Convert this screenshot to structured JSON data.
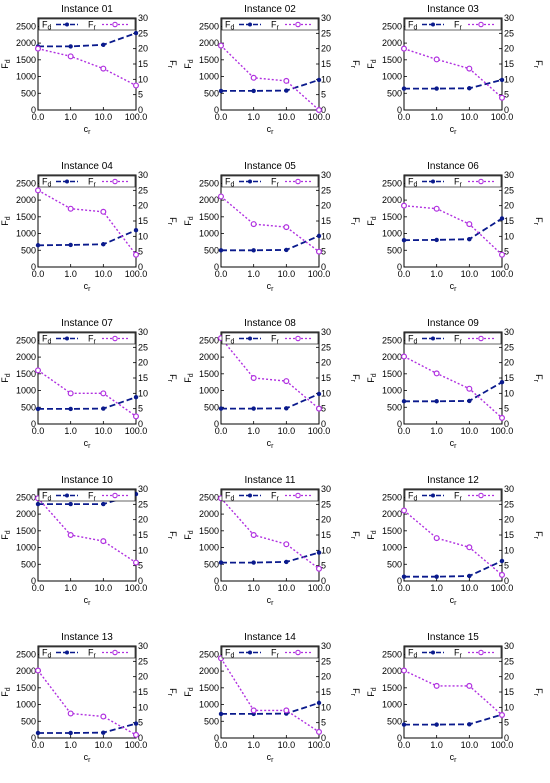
{
  "layout_note": "",
  "colors": {
    "fd": "#0a1a8c",
    "fr": "#b030e0",
    "axis": "#000000"
  },
  "legend": {
    "fd": "F_d",
    "fr": "F_r"
  },
  "chart_data": [
    {
      "type": "line",
      "title": "Instance 01",
      "categories": [
        "0.0",
        "1.0",
        "10.0",
        "100.0"
      ],
      "xlabel": "c_r",
      "ylabel": "F_d",
      "y2label": "F_r",
      "ylim": [
        0,
        2750
      ],
      "y2lim": [
        0,
        30
      ],
      "yticks": [
        0,
        500,
        1000,
        1500,
        2000,
        2500
      ],
      "y2ticks": [
        0,
        5,
        10,
        15,
        20,
        25,
        30
      ],
      "legend_position": "top",
      "series": [
        {
          "name": "F_d",
          "axis": "left",
          "values": [
            1900,
            1900,
            1950,
            2300
          ]
        },
        {
          "name": "F_r",
          "axis": "right",
          "values": [
            20,
            17.5,
            13.5,
            8
          ]
        }
      ]
    },
    {
      "type": "line",
      "title": "Instance 02",
      "categories": [
        "0.0",
        "1.0",
        "10.0",
        "100.0"
      ],
      "xlabel": "c_r",
      "ylabel": "F_d",
      "y2label": "F_r",
      "ylim": [
        0,
        2750
      ],
      "y2lim": [
        0,
        30
      ],
      "yticks": [
        0,
        500,
        1000,
        1500,
        2000,
        2500
      ],
      "y2ticks": [
        0,
        5,
        10,
        15,
        20,
        25,
        30
      ],
      "legend_position": "top",
      "series": [
        {
          "name": "F_d",
          "axis": "left",
          "values": [
            570,
            570,
            580,
            900
          ]
        },
        {
          "name": "F_r",
          "axis": "right",
          "values": [
            21,
            10.5,
            9.5,
            0
          ]
        }
      ]
    },
    {
      "type": "line",
      "title": "Instance 03",
      "categories": [
        "0.0",
        "1.0",
        "10.0",
        "100.0"
      ],
      "xlabel": "c_r",
      "ylabel": "F_d",
      "y2label": "F_r",
      "ylim": [
        0,
        2750
      ],
      "y2lim": [
        0,
        30
      ],
      "yticks": [
        0,
        500,
        1000,
        1500,
        2000,
        2500
      ],
      "y2ticks": [
        0,
        5,
        10,
        15,
        20,
        25,
        30
      ],
      "legend_position": "top",
      "series": [
        {
          "name": "F_d",
          "axis": "left",
          "values": [
            640,
            640,
            650,
            900
          ]
        },
        {
          "name": "F_r",
          "axis": "right",
          "values": [
            20,
            16.5,
            13.5,
            4
          ]
        }
      ]
    },
    {
      "type": "line",
      "title": "Instance 04",
      "categories": [
        "0.0",
        "1.0",
        "10.0",
        "100.0"
      ],
      "xlabel": "c_r",
      "ylabel": "F_d",
      "y2label": "F_r",
      "ylim": [
        0,
        2750
      ],
      "y2lim": [
        0,
        30
      ],
      "yticks": [
        0,
        500,
        1000,
        1500,
        2000,
        2500
      ],
      "y2ticks": [
        0,
        5,
        10,
        15,
        20,
        25,
        30
      ],
      "legend_position": "top",
      "series": [
        {
          "name": "F_d",
          "axis": "left",
          "values": [
            650,
            660,
            680,
            1100
          ]
        },
        {
          "name": "F_r",
          "axis": "right",
          "values": [
            25,
            19,
            18,
            4
          ]
        }
      ]
    },
    {
      "type": "line",
      "title": "Instance 05",
      "categories": [
        "0.0",
        "1.0",
        "10.0",
        "100.0"
      ],
      "xlabel": "c_r",
      "ylabel": "F_d",
      "y2label": "F_r",
      "ylim": [
        0,
        2750
      ],
      "y2lim": [
        0,
        30
      ],
      "yticks": [
        0,
        500,
        1000,
        1500,
        2000,
        2500
      ],
      "y2ticks": [
        0,
        5,
        10,
        15,
        20,
        25,
        30
      ],
      "legend_position": "top",
      "series": [
        {
          "name": "F_d",
          "axis": "left",
          "values": [
            500,
            500,
            510,
            930
          ]
        },
        {
          "name": "F_r",
          "axis": "right",
          "values": [
            23,
            14,
            13,
            5
          ]
        }
      ]
    },
    {
      "type": "line",
      "title": "Instance 06",
      "categories": [
        "0.0",
        "1.0",
        "10.0",
        "100.0"
      ],
      "xlabel": "c_r",
      "ylabel": "F_d",
      "y2label": "F_r",
      "ylim": [
        0,
        2750
      ],
      "y2lim": [
        0,
        30
      ],
      "yticks": [
        0,
        500,
        1000,
        1500,
        2000,
        2500
      ],
      "y2ticks": [
        0,
        5,
        10,
        15,
        20,
        25,
        30
      ],
      "legend_position": "top",
      "series": [
        {
          "name": "F_d",
          "axis": "left",
          "values": [
            800,
            810,
            830,
            1450
          ]
        },
        {
          "name": "F_r",
          "axis": "right",
          "values": [
            20,
            19,
            14,
            4
          ]
        }
      ]
    },
    {
      "type": "line",
      "title": "Instance 07",
      "categories": [
        "0.0",
        "1.0",
        "10.0",
        "100.0"
      ],
      "xlabel": "c_r",
      "ylabel": "F_d",
      "y2label": "F_r",
      "ylim": [
        0,
        2750
      ],
      "y2lim": [
        0,
        30
      ],
      "yticks": [
        0,
        500,
        1000,
        1500,
        2000,
        2500
      ],
      "y2ticks": [
        0,
        5,
        10,
        15,
        20,
        25,
        30
      ],
      "legend_position": "top",
      "series": [
        {
          "name": "F_d",
          "axis": "left",
          "values": [
            450,
            450,
            460,
            800
          ]
        },
        {
          "name": "F_r",
          "axis": "right",
          "values": [
            17.5,
            10,
            10,
            2.5
          ]
        }
      ]
    },
    {
      "type": "line",
      "title": "Instance 08",
      "categories": [
        "0.0",
        "1.0",
        "10.0",
        "100.0"
      ],
      "xlabel": "c_r",
      "ylabel": "F_d",
      "y2label": "F_r",
      "ylim": [
        0,
        2750
      ],
      "y2lim": [
        0,
        30
      ],
      "yticks": [
        0,
        500,
        1000,
        1500,
        2000,
        2500
      ],
      "y2ticks": [
        0,
        5,
        10,
        15,
        20,
        25,
        30
      ],
      "legend_position": "top",
      "series": [
        {
          "name": "F_d",
          "axis": "left",
          "values": [
            460,
            460,
            470,
            900
          ]
        },
        {
          "name": "F_r",
          "axis": "right",
          "values": [
            28,
            15,
            14,
            5
          ]
        }
      ]
    },
    {
      "type": "line",
      "title": "Instance 09",
      "categories": [
        "0.0",
        "1.0",
        "10.0",
        "100.0"
      ],
      "xlabel": "c_r",
      "ylabel": "F_d",
      "y2label": "F_r",
      "ylim": [
        0,
        2750
      ],
      "y2lim": [
        0,
        30
      ],
      "yticks": [
        0,
        500,
        1000,
        1500,
        2000,
        2500
      ],
      "y2ticks": [
        0,
        5,
        10,
        15,
        20,
        25,
        30
      ],
      "legend_position": "top",
      "series": [
        {
          "name": "F_d",
          "axis": "left",
          "values": [
            680,
            680,
            690,
            1250
          ]
        },
        {
          "name": "F_r",
          "axis": "right",
          "values": [
            22,
            16.5,
            11.5,
            2
          ]
        }
      ]
    },
    {
      "type": "line",
      "title": "Instance 10",
      "categories": [
        "0.0",
        "1.0",
        "10.0",
        "100.0"
      ],
      "xlabel": "c_r",
      "ylabel": "F_d",
      "y2label": "F_r",
      "ylim": [
        0,
        2750
      ],
      "y2lim": [
        0,
        30
      ],
      "yticks": [
        0,
        500,
        1000,
        1500,
        2000,
        2500
      ],
      "y2ticks": [
        0,
        5,
        10,
        15,
        20,
        25,
        30
      ],
      "legend_position": "top",
      "series": [
        {
          "name": "F_d",
          "axis": "left",
          "values": [
            2300,
            2300,
            2300,
            2600
          ]
        },
        {
          "name": "F_r",
          "axis": "right",
          "values": [
            27,
            15,
            13,
            6
          ]
        }
      ]
    },
    {
      "type": "line",
      "title": "Instance 11",
      "categories": [
        "0.0",
        "1.0",
        "10.0",
        "100.0"
      ],
      "xlabel": "c_r",
      "ylabel": "F_d",
      "y2label": "F_r",
      "ylim": [
        0,
        2750
      ],
      "y2lim": [
        0,
        30
      ],
      "yticks": [
        0,
        500,
        1000,
        1500,
        2000,
        2500
      ],
      "y2ticks": [
        0,
        5,
        10,
        15,
        20,
        25,
        30
      ],
      "legend_position": "top",
      "series": [
        {
          "name": "F_d",
          "axis": "left",
          "values": [
            550,
            550,
            570,
            850
          ]
        },
        {
          "name": "F_r",
          "axis": "right",
          "values": [
            27,
            15,
            12,
            4
          ]
        }
      ]
    },
    {
      "type": "line",
      "title": "Instance 12",
      "categories": [
        "0.0",
        "1.0",
        "10.0",
        "100.0"
      ],
      "xlabel": "c_r",
      "ylabel": "F_d",
      "y2label": "F_r",
      "ylim": [
        0,
        2750
      ],
      "y2lim": [
        0,
        30
      ],
      "yticks": [
        0,
        500,
        1000,
        1500,
        2000,
        2500
      ],
      "y2ticks": [
        0,
        5,
        10,
        15,
        20,
        25,
        30
      ],
      "legend_position": "top",
      "series": [
        {
          "name": "F_d",
          "axis": "left",
          "values": [
            130,
            130,
            150,
            600
          ]
        },
        {
          "name": "F_r",
          "axis": "right",
          "values": [
            23,
            14,
            11,
            2
          ]
        }
      ]
    },
    {
      "type": "line",
      "title": "Instance 13",
      "categories": [
        "0.0",
        "1.0",
        "10.0",
        "100.0"
      ],
      "xlabel": "c_r",
      "ylabel": "F_d",
      "y2label": "F_r",
      "ylim": [
        0,
        2750
      ],
      "y2lim": [
        0,
        30
      ],
      "yticks": [
        0,
        500,
        1000,
        1500,
        2000,
        2500
      ],
      "y2ticks": [
        0,
        5,
        10,
        15,
        20,
        25,
        30
      ],
      "legend_position": "top",
      "series": [
        {
          "name": "F_d",
          "axis": "left",
          "values": [
            150,
            150,
            160,
            430
          ]
        },
        {
          "name": "F_r",
          "axis": "right",
          "values": [
            22,
            8,
            7,
            1
          ]
        }
      ]
    },
    {
      "type": "line",
      "title": "Instance 14",
      "categories": [
        "0.0",
        "1.0",
        "10.0",
        "100.0"
      ],
      "xlabel": "c_r",
      "ylabel": "F_d",
      "y2label": "F_r",
      "ylim": [
        0,
        2750
      ],
      "y2lim": [
        0,
        30
      ],
      "yticks": [
        0,
        500,
        1000,
        1500,
        2000,
        2500
      ],
      "y2ticks": [
        0,
        5,
        10,
        15,
        20,
        25,
        30
      ],
      "legend_position": "top",
      "series": [
        {
          "name": "F_d",
          "axis": "left",
          "values": [
            720,
            720,
            730,
            1050
          ]
        },
        {
          "name": "F_r",
          "axis": "right",
          "values": [
            26,
            9,
            9,
            2
          ]
        }
      ]
    },
    {
      "type": "line",
      "title": "Instance 15",
      "categories": [
        "0.0",
        "1.0",
        "10.0",
        "100.0"
      ],
      "xlabel": "c_r",
      "ylabel": "F_d",
      "y2label": "F_r",
      "ylim": [
        0,
        2750
      ],
      "y2lim": [
        0,
        30
      ],
      "yticks": [
        0,
        500,
        1000,
        1500,
        2000,
        2500
      ],
      "y2ticks": [
        0,
        5,
        10,
        15,
        20,
        25,
        30
      ],
      "legend_position": "top",
      "series": [
        {
          "name": "F_d",
          "axis": "left",
          "values": [
            400,
            400,
            410,
            700
          ]
        },
        {
          "name": "F_r",
          "axis": "right",
          "values": [
            22,
            17,
            17,
            7.5
          ]
        }
      ]
    }
  ]
}
